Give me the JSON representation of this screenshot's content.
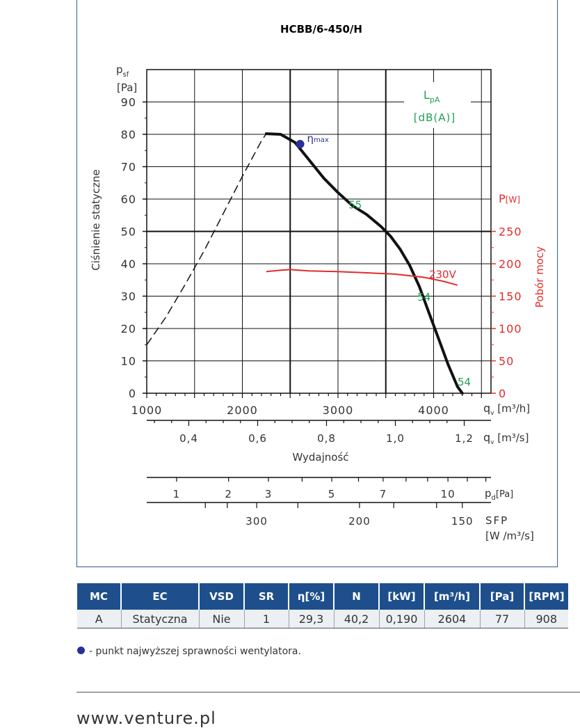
{
  "chart_data": {
    "type": "line",
    "title": "HCBB/6-450/H",
    "ylabel": "Ciśnienie statyczne",
    "ylabel_symbol": "p",
    "ylabel_symbol_sub": "sf",
    "ylabel_unit": "[Pa]",
    "xlabel": "Wydajność",
    "xlabel_symbol": "q",
    "xlabel_symbol_sub": "v",
    "xlabel_unit_m3h": "[m³/h]",
    "xlabel_unit_m3s": "[m³/s]",
    "y2label": "Pobór mocy",
    "y2label_symbol": "P",
    "y2label_unit": "[W]",
    "noise_label": "L",
    "noise_label_sub": "pA",
    "noise_unit": "[dB(A)]",
    "eta_label": "η",
    "eta_sub": "max",
    "xlim": [
      1000,
      4600
    ],
    "ylim": [
      0,
      100
    ],
    "y2lim": [
      0,
      500
    ],
    "x_ticks_m3h": [
      "1000",
      "2000",
      "3000",
      "4000"
    ],
    "x_tick_values_m3h": [
      1000,
      2000,
      3000,
      4000
    ],
    "x_ticks_m3s": [
      "0,4",
      "0,6",
      "0,8",
      "1,0",
      "1,2"
    ],
    "x_tick_values_m3s": [
      0.4,
      0.6,
      0.8,
      1.0,
      1.2
    ],
    "y_ticks": [
      "0",
      "10",
      "20",
      "30",
      "40",
      "50",
      "60",
      "70",
      "80",
      "90"
    ],
    "y_tick_values": [
      0,
      10,
      20,
      30,
      40,
      50,
      60,
      70,
      80,
      90
    ],
    "y2_ticks": [
      "0",
      "50",
      "100",
      "150",
      "200",
      "250"
    ],
    "y2_tick_values": [
      0,
      50,
      100,
      150,
      200,
      250
    ],
    "pd_label": "p",
    "pd_label_sub": "d",
    "pd_unit": "[Pa]",
    "pd_ticks": [
      "1",
      "2",
      "3",
      "5",
      "7",
      "10"
    ],
    "pd_tick_values": [
      1,
      2,
      3,
      5,
      7,
      10
    ],
    "sfp_label": "SFP",
    "sfp_unit": "[W /m³/s]",
    "sfp_ticks": [
      "300",
      "200",
      "150"
    ],
    "sfp_tick_values": [
      300,
      200,
      150
    ],
    "series": [
      {
        "kind": "pressure-stable",
        "color": "#111111",
        "x": [
          2250,
          2400,
          2550,
          2700,
          2850,
          3000,
          3150,
          3300,
          3450,
          3550,
          3650,
          3750,
          3850,
          3950,
          4050,
          4150,
          4250,
          4300
        ],
        "y": [
          80.2,
          80.0,
          77.5,
          72.0,
          66.5,
          62.0,
          58.0,
          55.2,
          51.5,
          48.5,
          44.5,
          39.5,
          33.0,
          25.0,
          17.0,
          9.0,
          2.0,
          0
        ]
      },
      {
        "kind": "pressure-unstable",
        "color": "#111111",
        "x": [
          1000,
          1200,
          1400,
          1600,
          1800,
          2000,
          2200,
          2250
        ],
        "y": [
          15.0,
          23.5,
          33.5,
          44.0,
          55.5,
          67.0,
          78.0,
          80.2
        ]
      },
      {
        "name": "230V",
        "kind": "power",
        "color": "#e32b2b",
        "x": [
          2250,
          2400,
          2500,
          2700,
          3000,
          3300,
          3600,
          3900,
          4100,
          4250
        ],
        "y": [
          188,
          190,
          191,
          189,
          188,
          186,
          184,
          179,
          173,
          167
        ]
      }
    ],
    "eta_max_point": {
      "x": 2604,
      "y": 77
    },
    "noise_labels": [
      {
        "text": "55",
        "x": 3180,
        "y": 58
      },
      {
        "text": "54",
        "x": 3900,
        "y": 29.5
      },
      {
        "text": "54",
        "x": 4320,
        "y": 3.2
      }
    ]
  },
  "table": {
    "headers": [
      "MC",
      "EC",
      "VSD",
      "SR",
      "η[%]",
      "N",
      "[kW]",
      "[m³/h]",
      "[Pa]",
      "[RPM]"
    ],
    "row": [
      "A",
      "Statyczna",
      "Nie",
      "1",
      "29,3",
      "40,2",
      "0,190",
      "2604",
      "77",
      "908"
    ]
  },
  "legend_note": "- punkt najwyższej sprawności wentylatora.",
  "footer_url": "www.venture.pl",
  "colors": {
    "header_bg": "#1e4f8c",
    "power": "#e32b2b",
    "noise": "#1f9e55",
    "eta_dot": "#27309b"
  }
}
